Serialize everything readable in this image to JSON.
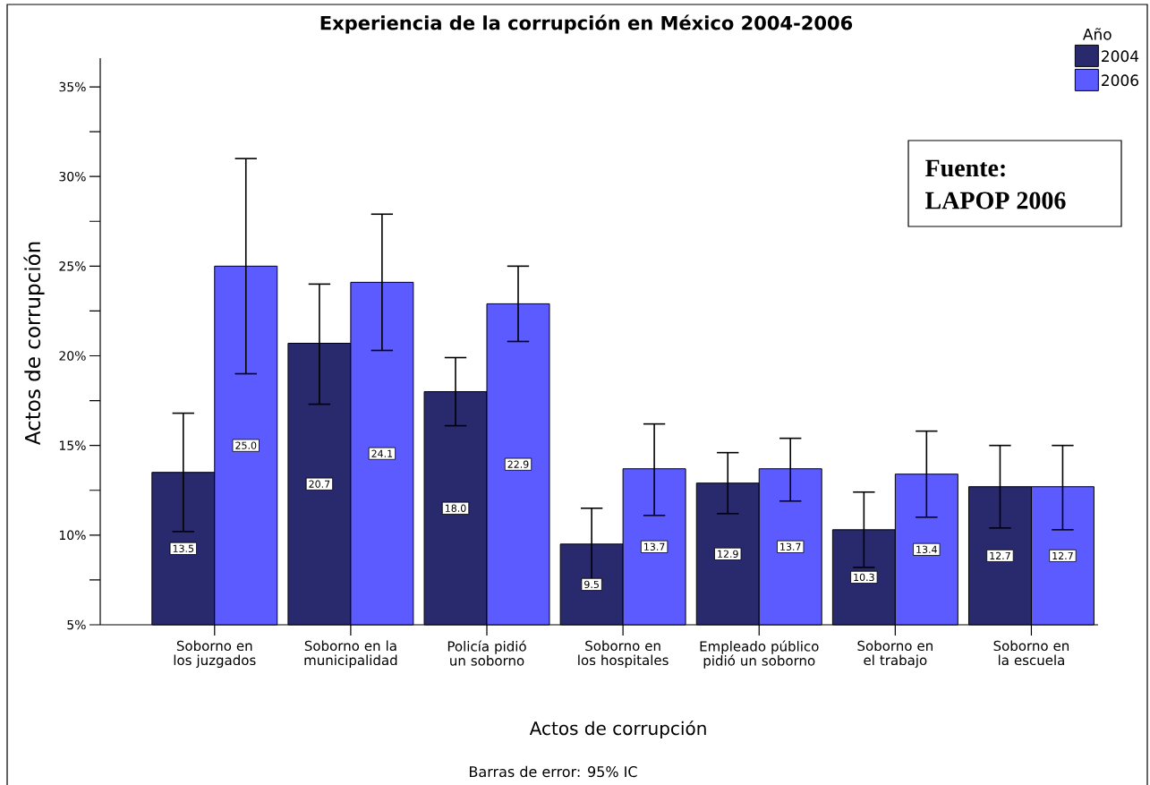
{
  "chart_data": {
    "type": "bar",
    "title": "Experiencia de la corrupción en México 2004-2006",
    "xlabel": "Actos de corrupción",
    "ylabel": "Actos de corrupción",
    "legend_title": "Año",
    "categories": [
      "Soborno en los juzgados",
      "Soborno en la municipalidad",
      "Policía pidió un soborno",
      "Soborno en los hospitales",
      "Empleado público pidió un soborno",
      "Soborno en el trabajo",
      "Soborno en la escuela"
    ],
    "series": [
      {
        "name": "2004",
        "color": "#29296e",
        "values": [
          13.5,
          20.7,
          18.0,
          9.5,
          12.9,
          10.3,
          12.7
        ],
        "value_labels": [
          "13.5",
          "20.7",
          "18.0",
          "9.5",
          "12.9",
          "10.3",
          "12.7"
        ],
        "errors": [
          [
            10.2,
            16.8
          ],
          [
            17.3,
            24.0
          ],
          [
            16.1,
            19.9
          ],
          [
            7.5,
            11.5
          ],
          [
            11.2,
            14.6
          ],
          [
            8.2,
            12.4
          ],
          [
            10.4,
            15.0
          ]
        ]
      },
      {
        "name": "2006",
        "color": "#5b5bff",
        "values": [
          25.0,
          24.1,
          22.9,
          13.7,
          13.7,
          13.4,
          12.7
        ],
        "value_labels": [
          "25.0",
          "24.1",
          "22.9",
          "13.7",
          "13.7",
          "13.4",
          "12.7"
        ],
        "errors": [
          [
            19.0,
            31.0
          ],
          [
            20.3,
            27.9
          ],
          [
            20.8,
            25.0
          ],
          [
            11.1,
            16.2
          ],
          [
            11.9,
            15.4
          ],
          [
            11.0,
            15.8
          ],
          [
            10.3,
            15.0
          ]
        ]
      }
    ],
    "ylim": [
      5,
      36.6
    ],
    "yticks": [
      {
        "value": 5,
        "label": "5%"
      },
      {
        "value": 7.5,
        "label": null
      },
      {
        "value": 10,
        "label": "10%"
      },
      {
        "value": 12.5,
        "label": null
      },
      {
        "value": 15,
        "label": "15%"
      },
      {
        "value": 17.5,
        "label": null
      },
      {
        "value": 20,
        "label": "20%"
      },
      {
        "value": 22.5,
        "label": null
      },
      {
        "value": 25,
        "label": "25%"
      },
      {
        "value": 27.5,
        "label": null
      },
      {
        "value": 30,
        "label": "30%"
      },
      {
        "value": 32.5,
        "label": null
      },
      {
        "value": 35,
        "label": "35%"
      }
    ],
    "grid": false,
    "legend": "top right",
    "annotations": [
      "Fuente:",
      "LAPOP 2006",
      "Barras de error: 95% IC"
    ]
  }
}
